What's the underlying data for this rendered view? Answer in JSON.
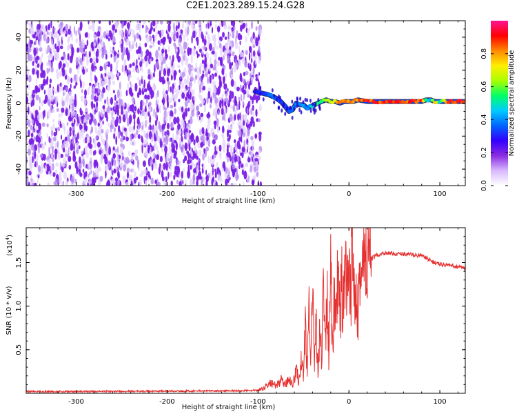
{
  "title": "C2E1.2023.289.15.24.G28",
  "chart_data": [
    {
      "type": "heatmap",
      "xlabel": "Height of straight line (km)",
      "ylabel": "Frequency (Hz)",
      "xlim": [
        -355,
        128
      ],
      "ylim": [
        -50,
        50
      ],
      "xticks": [
        -300,
        -200,
        -100,
        0,
        100
      ],
      "yticks": [
        -40,
        -20,
        0,
        20,
        40
      ],
      "xtick_labels": [
        "-300",
        "-200",
        "-100",
        "0",
        "100"
      ],
      "ytick_labels": [
        "-40",
        "-20",
        "0",
        "20",
        "40"
      ],
      "noise_region_x": [
        -355,
        -100
      ],
      "ridge": {
        "x": [
          -103,
          -95,
          -88,
          -80,
          -75,
          -70,
          -66,
          -62,
          -58,
          -54,
          -50,
          -46,
          -42,
          -38,
          -34,
          -30,
          -25,
          -20,
          -15,
          -10,
          -5,
          0,
          5,
          10,
          20,
          30,
          40,
          50,
          60,
          70,
          80,
          85,
          90,
          95,
          100,
          110,
          120,
          128
        ],
        "y": [
          7,
          6,
          5,
          3,
          1,
          -2,
          -5,
          -4,
          0,
          -1,
          -1,
          -3,
          -2,
          -1,
          0,
          1,
          2,
          1,
          1,
          0,
          1,
          1,
          1,
          2,
          1,
          1,
          1,
          1,
          1,
          1,
          1,
          2,
          2,
          1,
          1,
          1,
          1,
          1
        ],
        "amplitude": [
          0.3,
          0.35,
          0.4,
          0.4,
          0.35,
          0.35,
          0.35,
          0.4,
          0.45,
          0.4,
          0.45,
          0.45,
          0.5,
          0.55,
          0.6,
          0.65,
          0.7,
          0.75,
          0.8,
          0.85,
          0.9,
          0.9,
          0.9,
          0.9,
          0.95,
          0.95,
          0.95,
          0.95,
          0.95,
          0.95,
          0.9,
          0.55,
          0.5,
          0.9,
          0.5,
          0.95,
          0.95,
          0.95
        ]
      },
      "colorbar": {
        "label": "Normalized spectral amplitude",
        "range": [
          0,
          1
        ],
        "ticks": [
          0.0,
          0.2,
          0.4,
          0.6,
          0.8
        ],
        "tick_labels": [
          "0.0",
          "0.2",
          "0.4",
          "0.6",
          "0.8"
        ],
        "colormap": [
          "#ffffff",
          "#d8b8ff",
          "#8a2be2",
          "#3300ff",
          "#0066ff",
          "#00ccff",
          "#00ff66",
          "#aaff00",
          "#ffee00",
          "#ff8800",
          "#ff0000",
          "#ff1493"
        ]
      }
    },
    {
      "type": "line",
      "xlabel": "Height of straight line (km)",
      "ylabel": "SNR (10 * v/v)",
      "multiplier_label": "(x10",
      "multiplier_exponent": "4",
      "multiplier_close": ")",
      "xlim": [
        -355,
        128
      ],
      "ylim": [
        0,
        19000
      ],
      "xticks": [
        -300,
        -200,
        -100,
        0,
        100
      ],
      "yticks": [
        5000,
        10000,
        15000
      ],
      "xtick_labels": [
        "-300",
        "-200",
        "-100",
        "0",
        "100"
      ],
      "ytick_labels": [
        "0.5",
        "1.0",
        "1.5"
      ],
      "color": "#e53030",
      "series": [
        {
          "x": [
            -355,
            -300,
            -200,
            -110,
            -100,
            -95,
            -90,
            -85,
            -80,
            -75,
            -70,
            -66,
            -62,
            -58,
            -55,
            -52,
            -50,
            -48,
            -46,
            -44,
            -42,
            -40,
            -38,
            -36,
            -34,
            -32,
            -30,
            -28,
            -26,
            -24,
            -22,
            -20,
            -18,
            -16,
            -14,
            -12,
            -10,
            -8,
            -6,
            -4,
            -2,
            0,
            2,
            4,
            6,
            8,
            10,
            12,
            14,
            16,
            18,
            20,
            25,
            30,
            35,
            40,
            50,
            60,
            70,
            80,
            90,
            100,
            110,
            120,
            128
          ],
          "values": [
            200,
            200,
            250,
            300,
            350,
            500,
            900,
            1200,
            800,
            1500,
            900,
            1800,
            1000,
            2500,
            1500,
            4000,
            2000,
            8000,
            3000,
            10000,
            2500,
            11000,
            3500,
            9000,
            2500,
            7000,
            4000,
            15000,
            5000,
            11000,
            4000,
            13000,
            6000,
            12000,
            7000,
            14000,
            9000,
            12000,
            10000,
            13000,
            11000,
            12500,
            11000,
            19000,
            12000,
            13500,
            10500,
            14000,
            13000,
            14500,
            14000,
            15000,
            15500,
            15800,
            16000,
            16100,
            16000,
            16000,
            15900,
            15800,
            15200,
            14800,
            14700,
            14500,
            14300
          ]
        }
      ]
    }
  ]
}
